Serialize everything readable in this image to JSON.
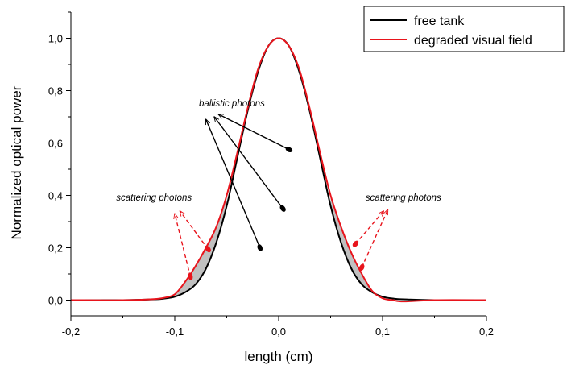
{
  "chart_data": {
    "type": "line",
    "title": "",
    "xlabel": "length (cm)",
    "ylabel": "Normalized optical power",
    "xlim": [
      -0.2,
      0.2
    ],
    "ylim": [
      -0.06,
      1.1
    ],
    "x_ticks": [
      -0.2,
      -0.1,
      0.0,
      0.1,
      0.2
    ],
    "x_tick_labels": [
      "-0,2",
      "-0,1",
      "0,0",
      "0,1",
      "0,2"
    ],
    "y_ticks": [
      0.0,
      0.2,
      0.4,
      0.6,
      0.8,
      1.0
    ],
    "y_tick_labels": [
      "0,0",
      "0,2",
      "0,4",
      "0,6",
      "0,8",
      "1,0"
    ],
    "grid": false,
    "legend_position": "top-right",
    "series": [
      {
        "name": "free tank",
        "color": "#000000",
        "x": [
          -0.2,
          -0.15,
          -0.12,
          -0.11,
          -0.1,
          -0.09,
          -0.08,
          -0.07,
          -0.06,
          -0.05,
          -0.04,
          -0.03,
          -0.02,
          -0.01,
          0.0,
          0.01,
          0.02,
          0.03,
          0.04,
          0.05,
          0.06,
          0.07,
          0.08,
          0.09,
          0.1,
          0.11,
          0.12,
          0.15,
          0.2
        ],
        "y": [
          0.0,
          0.0,
          0.003,
          0.006,
          0.013,
          0.03,
          0.06,
          0.12,
          0.22,
          0.36,
          0.54,
          0.72,
          0.87,
          0.97,
          1.0,
          0.97,
          0.87,
          0.72,
          0.54,
          0.36,
          0.22,
          0.12,
          0.06,
          0.03,
          0.013,
          0.006,
          0.003,
          0.0,
          0.0
        ]
      },
      {
        "name": "degraded visual field",
        "color": "#e8141c",
        "x": [
          -0.2,
          -0.15,
          -0.12,
          -0.11,
          -0.1,
          -0.09,
          -0.08,
          -0.07,
          -0.06,
          -0.05,
          -0.04,
          -0.03,
          -0.02,
          -0.01,
          0.0,
          0.01,
          0.02,
          0.03,
          0.04,
          0.05,
          0.06,
          0.07,
          0.08,
          0.09,
          0.1,
          0.11,
          0.12,
          0.15,
          0.2
        ],
        "y": [
          0.0,
          0.0,
          0.004,
          0.009,
          0.022,
          0.07,
          0.13,
          0.2,
          0.28,
          0.4,
          0.56,
          0.73,
          0.88,
          0.97,
          1.0,
          0.97,
          0.88,
          0.73,
          0.56,
          0.4,
          0.28,
          0.18,
          0.1,
          0.035,
          0.007,
          0.0,
          -0.005,
          0.0,
          0.0
        ]
      }
    ],
    "annotations": [
      {
        "text": "ballistic photons",
        "x": -0.045,
        "y": 0.74,
        "color": "#000000",
        "arrows": [
          {
            "from": [
              -0.018,
              0.2
            ],
            "to": [
              -0.07,
              0.69
            ]
          },
          {
            "from": [
              0.004,
              0.35
            ],
            "to": [
              -0.062,
              0.7
            ]
          },
          {
            "from": [
              0.01,
              0.575
            ],
            "to": [
              -0.058,
              0.71
            ]
          }
        ]
      },
      {
        "text": "scattering photons",
        "x": -0.12,
        "y": 0.38,
        "color": "#e8141c",
        "arrows": [
          {
            "from": [
              -0.085,
              0.09
            ],
            "to": [
              -0.1,
              0.33
            ]
          },
          {
            "from": [
              -0.068,
              0.195
            ],
            "to": [
              -0.095,
              0.34
            ]
          }
        ]
      },
      {
        "text": "scattering photons",
        "x": 0.12,
        "y": 0.38,
        "color": "#e8141c",
        "arrows": [
          {
            "from": [
              0.074,
              0.215
            ],
            "to": [
              0.101,
              0.34
            ]
          },
          {
            "from": [
              0.08,
              0.125
            ],
            "to": [
              0.105,
              0.345
            ]
          }
        ]
      }
    ],
    "shaded_regions": [
      {
        "between": [
          "free tank",
          "degraded visual field"
        ],
        "x_range": [
          -0.1,
          -0.05
        ],
        "color": "#c0c0c0"
      },
      {
        "between": [
          "free tank",
          "degraded visual field"
        ],
        "x_range": [
          0.05,
          0.1
        ],
        "color": "#c0c0c0"
      }
    ]
  }
}
